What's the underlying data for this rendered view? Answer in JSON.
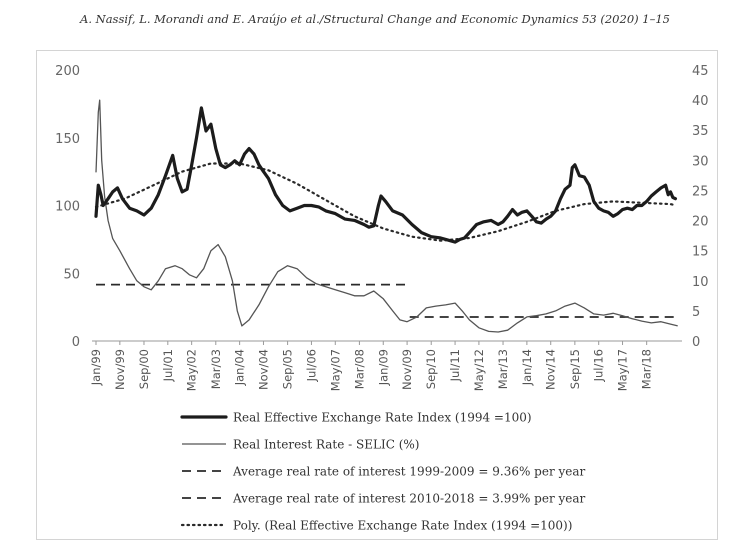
{
  "header": "A. Nassif, L. Morandi and E. Araújo et al./Structural Change and Economic Dynamics 53 (2020) 1–15",
  "chart_data": {
    "type": "line",
    "title": "",
    "left_axis": {
      "min": 0,
      "max": 200,
      "ticks": [
        0,
        50,
        100,
        150,
        200
      ]
    },
    "right_axis": {
      "min": 0,
      "max": 45,
      "ticks": [
        0,
        5,
        10,
        15,
        20,
        25,
        30,
        35,
        40,
        45
      ]
    },
    "x_range": [
      1999.0,
      2019.4
    ],
    "x_ticks": [
      {
        "label": "Jan/99",
        "t": 1999.0
      },
      {
        "label": "Nov/99",
        "t": 1999.83
      },
      {
        "label": "Sep/00",
        "t": 2000.67
      },
      {
        "label": "Jul/01",
        "t": 2001.5
      },
      {
        "label": "May/02",
        "t": 2002.33
      },
      {
        "label": "Mar/03",
        "t": 2003.17
      },
      {
        "label": "Jan/04",
        "t": 2004.0
      },
      {
        "label": "Nov/04",
        "t": 2004.83
      },
      {
        "label": "Sep/05",
        "t": 2005.67
      },
      {
        "label": "Jul/06",
        "t": 2006.5
      },
      {
        "label": "May/07",
        "t": 2007.33
      },
      {
        "label": "Mar/08",
        "t": 2008.17
      },
      {
        "label": "Jan/09",
        "t": 2009.0
      },
      {
        "label": "Nov/09",
        "t": 2009.83
      },
      {
        "label": "Sep/10",
        "t": 2010.67
      },
      {
        "label": "Jul/11",
        "t": 2011.5
      },
      {
        "label": "May/12",
        "t": 2012.33
      },
      {
        "label": "Mar/13",
        "t": 2013.17
      },
      {
        "label": "Jan/14",
        "t": 2014.0
      },
      {
        "label": "Nov/14",
        "t": 2014.83
      },
      {
        "label": "Sep/15",
        "t": 2015.67
      },
      {
        "label": "Jul/16",
        "t": 2016.5
      },
      {
        "label": "May/17",
        "t": 2017.33
      },
      {
        "label": "Mar/18",
        "t": 2018.17
      }
    ],
    "series": [
      {
        "name": "Real Effective Exchange Rate Index (1994 =100)",
        "axis": "left",
        "style": "thick",
        "points": [
          [
            1999.0,
            92
          ],
          [
            1999.08,
            115
          ],
          [
            1999.17,
            108
          ],
          [
            1999.25,
            100
          ],
          [
            1999.42,
            105
          ],
          [
            1999.58,
            110
          ],
          [
            1999.75,
            113
          ],
          [
            1999.92,
            105
          ],
          [
            2000.17,
            98
          ],
          [
            2000.42,
            96
          ],
          [
            2000.67,
            93
          ],
          [
            2000.92,
            98
          ],
          [
            2001.17,
            108
          ],
          [
            2001.42,
            122
          ],
          [
            2001.67,
            137
          ],
          [
            2001.83,
            120
          ],
          [
            2002.0,
            110
          ],
          [
            2002.17,
            112
          ],
          [
            2002.33,
            130
          ],
          [
            2002.5,
            150
          ],
          [
            2002.67,
            172
          ],
          [
            2002.83,
            155
          ],
          [
            2003.0,
            160
          ],
          [
            2003.17,
            142
          ],
          [
            2003.33,
            130
          ],
          [
            2003.5,
            128
          ],
          [
            2003.67,
            130
          ],
          [
            2003.83,
            133
          ],
          [
            2004.0,
            130
          ],
          [
            2004.17,
            138
          ],
          [
            2004.33,
            142
          ],
          [
            2004.5,
            138
          ],
          [
            2004.67,
            130
          ],
          [
            2004.83,
            125
          ],
          [
            2005.0,
            120
          ],
          [
            2005.25,
            108
          ],
          [
            2005.5,
            100
          ],
          [
            2005.75,
            96
          ],
          [
            2006.0,
            98
          ],
          [
            2006.25,
            100
          ],
          [
            2006.5,
            100
          ],
          [
            2006.75,
            99
          ],
          [
            2007.0,
            96
          ],
          [
            2007.33,
            94
          ],
          [
            2007.67,
            90
          ],
          [
            2008.0,
            89
          ],
          [
            2008.33,
            86
          ],
          [
            2008.5,
            84
          ],
          [
            2008.67,
            85
          ],
          [
            2008.83,
            100
          ],
          [
            2008.92,
            107
          ],
          [
            2009.08,
            103
          ],
          [
            2009.33,
            96
          ],
          [
            2009.67,
            93
          ],
          [
            2010.0,
            86
          ],
          [
            2010.33,
            80
          ],
          [
            2010.67,
            77
          ],
          [
            2011.0,
            76
          ],
          [
            2011.33,
            74
          ],
          [
            2011.5,
            73
          ],
          [
            2011.67,
            75
          ],
          [
            2011.83,
            76
          ],
          [
            2012.0,
            80
          ],
          [
            2012.25,
            86
          ],
          [
            2012.5,
            88
          ],
          [
            2012.75,
            89
          ],
          [
            2013.0,
            86
          ],
          [
            2013.17,
            88
          ],
          [
            2013.33,
            92
          ],
          [
            2013.5,
            97
          ],
          [
            2013.67,
            93
          ],
          [
            2013.83,
            95
          ],
          [
            2014.0,
            96
          ],
          [
            2014.17,
            92
          ],
          [
            2014.33,
            88
          ],
          [
            2014.5,
            87
          ],
          [
            2014.67,
            90
          ],
          [
            2014.83,
            92
          ],
          [
            2015.0,
            96
          ],
          [
            2015.17,
            105
          ],
          [
            2015.33,
            112
          ],
          [
            2015.5,
            115
          ],
          [
            2015.58,
            128
          ],
          [
            2015.67,
            130
          ],
          [
            2015.83,
            122
          ],
          [
            2016.0,
            121
          ],
          [
            2016.17,
            115
          ],
          [
            2016.33,
            103
          ],
          [
            2016.5,
            98
          ],
          [
            2016.67,
            96
          ],
          [
            2016.83,
            95
          ],
          [
            2017.0,
            92
          ],
          [
            2017.17,
            94
          ],
          [
            2017.33,
            97
          ],
          [
            2017.5,
            98
          ],
          [
            2017.67,
            97
          ],
          [
            2017.83,
            100
          ],
          [
            2018.0,
            100
          ],
          [
            2018.17,
            103
          ],
          [
            2018.33,
            107
          ],
          [
            2018.5,
            110
          ],
          [
            2018.67,
            113
          ],
          [
            2018.83,
            115
          ],
          [
            2018.92,
            108
          ],
          [
            2019.0,
            110
          ],
          [
            2019.08,
            106
          ],
          [
            2019.17,
            105
          ]
        ]
      },
      {
        "name": "Real Interest Rate - SELIC (%)",
        "axis": "right",
        "style": "thin",
        "points": [
          [
            1999.0,
            28
          ],
          [
            1999.08,
            38
          ],
          [
            1999.13,
            40
          ],
          [
            1999.2,
            30
          ],
          [
            1999.3,
            24
          ],
          [
            1999.42,
            20
          ],
          [
            1999.58,
            17
          ],
          [
            1999.83,
            15
          ],
          [
            2000.17,
            12
          ],
          [
            2000.42,
            10
          ],
          [
            2000.67,
            9
          ],
          [
            2000.92,
            8.5
          ],
          [
            2001.17,
            10
          ],
          [
            2001.42,
            12
          ],
          [
            2001.75,
            12.5
          ],
          [
            2002.0,
            12
          ],
          [
            2002.25,
            11
          ],
          [
            2002.5,
            10.5
          ],
          [
            2002.75,
            12
          ],
          [
            2003.0,
            15
          ],
          [
            2003.25,
            16
          ],
          [
            2003.5,
            14
          ],
          [
            2003.75,
            10
          ],
          [
            2003.92,
            5
          ],
          [
            2004.08,
            2.5
          ],
          [
            2004.33,
            3.5
          ],
          [
            2004.67,
            6
          ],
          [
            2005.0,
            9
          ],
          [
            2005.33,
            11.5
          ],
          [
            2005.67,
            12.5
          ],
          [
            2006.0,
            12
          ],
          [
            2006.33,
            10.5
          ],
          [
            2006.67,
            9.5
          ],
          [
            2007.0,
            9
          ],
          [
            2007.33,
            8.5
          ],
          [
            2007.67,
            8
          ],
          [
            2008.0,
            7.5
          ],
          [
            2008.33,
            7.5
          ],
          [
            2008.67,
            8.3
          ],
          [
            2009.0,
            7
          ],
          [
            2009.33,
            5
          ],
          [
            2009.58,
            3.5
          ],
          [
            2009.83,
            3.2
          ],
          [
            2010.17,
            4
          ],
          [
            2010.5,
            5.5
          ],
          [
            2010.83,
            5.8
          ],
          [
            2011.17,
            6
          ],
          [
            2011.5,
            6.3
          ],
          [
            2011.75,
            5
          ],
          [
            2012.0,
            3.5
          ],
          [
            2012.33,
            2.2
          ],
          [
            2012.67,
            1.6
          ],
          [
            2013.0,
            1.5
          ],
          [
            2013.33,
            1.8
          ],
          [
            2013.67,
            3
          ],
          [
            2014.0,
            4
          ],
          [
            2014.33,
            4.2
          ],
          [
            2014.67,
            4.5
          ],
          [
            2015.0,
            5
          ],
          [
            2015.33,
            5.8
          ],
          [
            2015.67,
            6.3
          ],
          [
            2016.0,
            5.5
          ],
          [
            2016.33,
            4.5
          ],
          [
            2016.67,
            4.3
          ],
          [
            2017.0,
            4.6
          ],
          [
            2017.33,
            4.2
          ],
          [
            2017.67,
            3.7
          ],
          [
            2018.0,
            3.3
          ],
          [
            2018.33,
            3.0
          ],
          [
            2018.67,
            3.2
          ],
          [
            2019.0,
            2.8
          ],
          [
            2019.25,
            2.5
          ]
        ]
      },
      {
        "name": "Average real rate of interest 1999-2009 = 9.36% per year",
        "axis": "right",
        "style": "dashed",
        "points": [
          [
            1999.0,
            9.36
          ],
          [
            2009.83,
            9.36
          ]
        ]
      },
      {
        "name": "Average real rate of interest 2010-2018 = 3.99% per year",
        "axis": "right",
        "style": "dashed",
        "points": [
          [
            2009.92,
            3.99
          ],
          [
            2019.25,
            3.99
          ]
        ]
      },
      {
        "name": "Poly. (Real Effective Exchange Rate Index (1994 =100))",
        "axis": "left",
        "style": "dotted",
        "polynomial_points": [
          [
            1999.0,
            99
          ],
          [
            2000.0,
            105
          ],
          [
            2001.0,
            115
          ],
          [
            2002.0,
            125
          ],
          [
            2003.0,
            131
          ],
          [
            2004.0,
            131
          ],
          [
            2005.0,
            126
          ],
          [
            2006.0,
            116
          ],
          [
            2007.0,
            104
          ],
          [
            2008.0,
            92
          ],
          [
            2009.0,
            83
          ],
          [
            2010.0,
            77
          ],
          [
            2011.0,
            74
          ],
          [
            2012.0,
            76
          ],
          [
            2013.0,
            81
          ],
          [
            2014.0,
            88
          ],
          [
            2015.0,
            96
          ],
          [
            2016.0,
            101
          ],
          [
            2017.0,
            103
          ],
          [
            2018.0,
            102
          ],
          [
            2019.0,
            101
          ],
          [
            2019.2,
            100
          ]
        ]
      }
    ],
    "legend": [
      {
        "label": "Real Effective Exchange Rate Index (1994 =100)",
        "style": "thick"
      },
      {
        "label": "Real Interest Rate - SELIC (%)",
        "style": "thin"
      },
      {
        "label": "Average real rate of interest 1999-2009 = 9.36% per year",
        "style": "dashed"
      },
      {
        "label": "Average real rate of interest 2010-2018 = 3.99% per year",
        "style": "dashed"
      },
      {
        "label": "Poly. (Real Effective Exchange Rate Index (1994 =100))",
        "style": "dotted"
      }
    ],
    "legend_position": "bottom"
  }
}
